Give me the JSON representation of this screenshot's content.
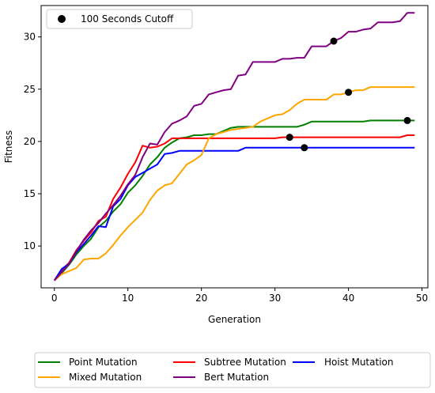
{
  "chart_data": {
    "type": "line",
    "xlabel": "Generation",
    "ylabel": "Fitness",
    "xlim": [
      -1.8,
      50.8
    ],
    "ylim": [
      6,
      33
    ],
    "xticks": [
      0,
      10,
      20,
      30,
      40,
      50
    ],
    "yticks": [
      10,
      15,
      20,
      25,
      30
    ],
    "grid": false,
    "legend_position": "bottom",
    "series": [
      {
        "name": "Point Mutation",
        "color": "#008000",
        "x": [
          0,
          1,
          2,
          3,
          4,
          5,
          6,
          7,
          8,
          9,
          10,
          11,
          12,
          13,
          14,
          15,
          16,
          17,
          18,
          19,
          20,
          21,
          22,
          23,
          24,
          25,
          26,
          27,
          28,
          29,
          30,
          31,
          32,
          33,
          34,
          35,
          36,
          37,
          38,
          39,
          40,
          41,
          42,
          43,
          44,
          45,
          46,
          47,
          48,
          49
        ],
        "y": [
          6.7,
          7.4,
          8.2,
          9.2,
          10.0,
          10.7,
          11.8,
          12.4,
          13.3,
          14.0,
          15.1,
          15.8,
          16.7,
          17.8,
          18.5,
          19.4,
          19.9,
          20.3,
          20.4,
          20.6,
          20.6,
          20.7,
          20.7,
          21.0,
          21.3,
          21.4,
          21.4,
          21.4,
          21.4,
          21.4,
          21.4,
          21.4,
          21.4,
          21.4,
          21.6,
          21.9,
          21.9,
          21.9,
          21.9,
          21.9,
          21.9,
          21.9,
          21.9,
          22.0,
          22.0,
          22.0,
          22.0,
          22.0,
          22.0,
          22.0
        ]
      },
      {
        "name": "Subtree Mutation",
        "color": "#ff0000",
        "x": [
          0,
          1,
          2,
          3,
          4,
          5,
          6,
          7,
          8,
          9,
          10,
          11,
          12,
          13,
          14,
          15,
          16,
          17,
          18,
          19,
          20,
          21,
          22,
          23,
          24,
          25,
          26,
          27,
          28,
          29,
          30,
          31,
          32,
          33,
          34,
          35,
          36,
          37,
          38,
          39,
          40,
          41,
          42,
          43,
          44,
          45,
          46,
          47,
          48,
          49
        ],
        "y": [
          6.7,
          7.7,
          8.4,
          9.6,
          10.5,
          11.3,
          12.4,
          12.8,
          14.5,
          15.6,
          16.9,
          18.0,
          19.6,
          19.4,
          19.5,
          19.8,
          20.3,
          20.3,
          20.3,
          20.3,
          20.3,
          20.3,
          20.3,
          20.3,
          20.3,
          20.3,
          20.3,
          20.3,
          20.3,
          20.3,
          20.3,
          20.4,
          20.4,
          20.4,
          20.4,
          20.4,
          20.4,
          20.4,
          20.4,
          20.4,
          20.4,
          20.4,
          20.4,
          20.4,
          20.4,
          20.4,
          20.4,
          20.4,
          20.6,
          20.6
        ]
      },
      {
        "name": "Hoist Mutation",
        "color": "#0000ff",
        "x": [
          0,
          1,
          2,
          3,
          4,
          5,
          6,
          7,
          8,
          9,
          10,
          11,
          12,
          13,
          14,
          15,
          16,
          17,
          18,
          19,
          20,
          21,
          22,
          23,
          24,
          25,
          26,
          27,
          28,
          29,
          30,
          31,
          32,
          33,
          34,
          35,
          36,
          37,
          38,
          39,
          40,
          41,
          42,
          43,
          44,
          45,
          46,
          47,
          48,
          49
        ],
        "y": [
          6.7,
          7.8,
          8.3,
          9.4,
          10.2,
          11.0,
          11.9,
          11.8,
          13.8,
          14.5,
          15.8,
          16.6,
          17.0,
          17.4,
          17.8,
          18.8,
          18.9,
          19.1,
          19.1,
          19.1,
          19.1,
          19.1,
          19.1,
          19.1,
          19.1,
          19.1,
          19.4,
          19.4,
          19.4,
          19.4,
          19.4,
          19.4,
          19.4,
          19.4,
          19.4,
          19.4,
          19.4,
          19.4,
          19.4,
          19.4,
          19.4,
          19.4,
          19.4,
          19.4,
          19.4,
          19.4,
          19.4,
          19.4,
          19.4,
          19.4
        ]
      },
      {
        "name": "Mixed Mutation",
        "color": "#ffa500",
        "x": [
          0,
          1,
          2,
          3,
          4,
          5,
          6,
          7,
          8,
          9,
          10,
          11,
          12,
          13,
          14,
          15,
          16,
          17,
          18,
          19,
          20,
          21,
          22,
          23,
          24,
          25,
          26,
          27,
          28,
          29,
          30,
          31,
          32,
          33,
          34,
          35,
          36,
          37,
          38,
          39,
          40,
          41,
          42,
          43,
          44,
          45,
          46,
          47,
          48,
          49
        ],
        "y": [
          6.7,
          7.3,
          7.6,
          7.9,
          8.7,
          8.8,
          8.8,
          9.3,
          10.1,
          11.0,
          11.8,
          12.5,
          13.2,
          14.4,
          15.3,
          15.8,
          16.0,
          16.9,
          17.8,
          18.2,
          18.7,
          20.3,
          20.7,
          20.9,
          21.1,
          21.2,
          21.3,
          21.4,
          21.9,
          22.2,
          22.5,
          22.6,
          23.0,
          23.6,
          24.0,
          24.0,
          24.0,
          24.0,
          24.5,
          24.5,
          24.7,
          24.9,
          24.9,
          25.2,
          25.2,
          25.2,
          25.2,
          25.2,
          25.2,
          25.2
        ]
      },
      {
        "name": "Bert Mutation",
        "color": "#800080",
        "x": [
          0,
          1,
          2,
          3,
          4,
          5,
          6,
          7,
          8,
          9,
          10,
          11,
          12,
          13,
          14,
          15,
          16,
          17,
          18,
          19,
          20,
          21,
          22,
          23,
          24,
          25,
          26,
          27,
          28,
          29,
          30,
          31,
          32,
          33,
          34,
          35,
          36,
          37,
          38,
          39,
          40,
          41,
          42,
          43,
          44,
          45,
          46,
          47,
          48,
          49
        ],
        "y": [
          6.7,
          7.5,
          8.3,
          9.5,
          10.6,
          11.5,
          12.2,
          13.1,
          13.9,
          14.8,
          15.9,
          16.8,
          18.5,
          19.8,
          19.7,
          20.9,
          21.7,
          22.0,
          22.4,
          23.4,
          23.6,
          24.5,
          24.7,
          24.9,
          25.0,
          26.3,
          26.4,
          27.6,
          27.6,
          27.6,
          27.6,
          27.9,
          27.9,
          28.0,
          28.0,
          29.1,
          29.1,
          29.1,
          29.6,
          29.9,
          30.5,
          30.5,
          30.7,
          30.8,
          31.4,
          31.4,
          31.4,
          31.5,
          32.3,
          32.3
        ]
      },
      {
        "name": "100 Seconds Cutoff",
        "color": "#000000",
        "marker": "circle",
        "x": [
          32,
          34,
          38,
          40,
          48
        ],
        "y": [
          20.4,
          19.4,
          29.6,
          24.7,
          22.0
        ]
      }
    ],
    "legend_bottom_order": [
      "Point Mutation",
      "Subtree Mutation",
      "Hoist Mutation",
      "Mixed Mutation",
      "Bert Mutation"
    ]
  }
}
